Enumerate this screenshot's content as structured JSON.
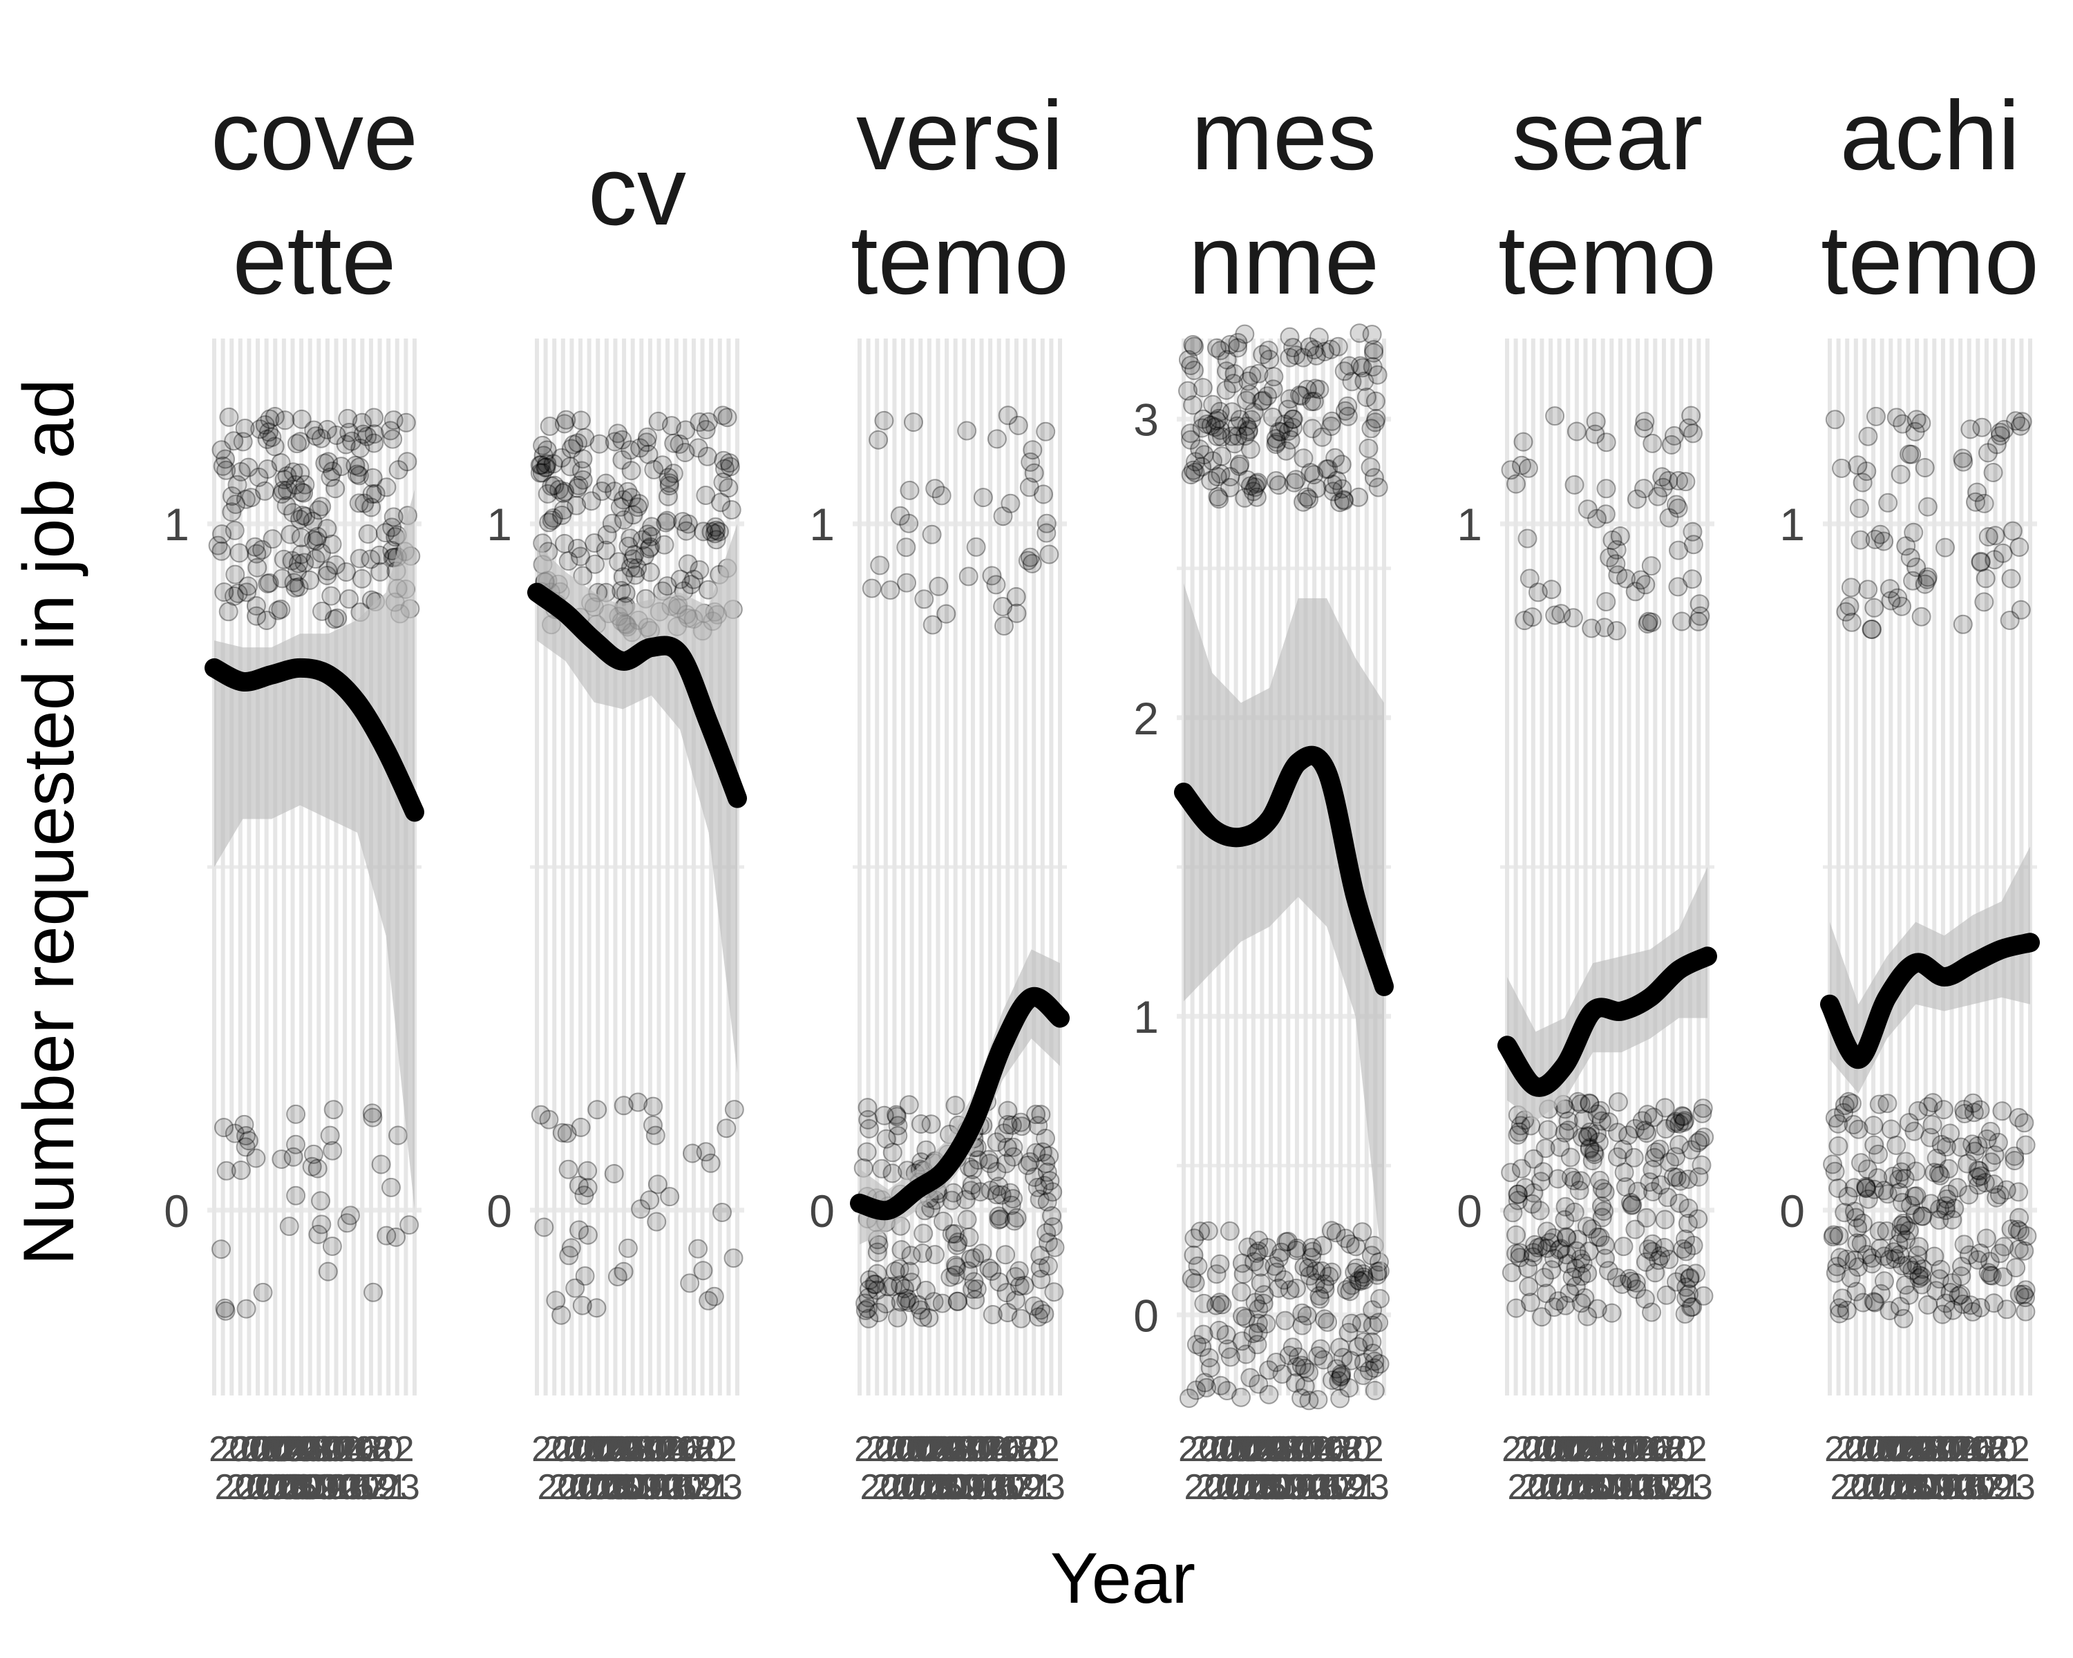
{
  "chart_data": {
    "type": "scatter",
    "xlabel": "Year",
    "ylabel": "Number requested in job ad",
    "x_categories": [
      "2000",
      "2001",
      "2002",
      "2003",
      "2004",
      "2005",
      "2006",
      "2007",
      "2008",
      "2009",
      "2010",
      "2011",
      "2012",
      "2013",
      "2014",
      "2015",
      "2016",
      "2017",
      "2018",
      "2019",
      "2020",
      "2021",
      "2022",
      "2023"
    ],
    "x_tick_rows": [
      "2000 2002 2004 2006 2008 2010 2012 2014 2016 2018 2020 2022",
      "2001 2003 2005 2007 2009 2011 2013 2015 2017 2019 2021 2023"
    ],
    "point_alpha": 0.15,
    "smoother_color": "#000000",
    "ribbon_color": "#bdbdbd",
    "grid": true,
    "panels": [
      {
        "strip_lines": [
          "cove",
          "ette"
        ],
        "ylim": [
          -0.27,
          1.27
        ],
        "y_ticks": [
          0,
          1
        ],
        "jitter_levels": [
          0,
          1
        ],
        "level_counts": [
          42,
          170
        ],
        "smooth": [
          0.79,
          0.77,
          0.78,
          0.79,
          0.78,
          0.74,
          0.67,
          0.58
        ],
        "lower": [
          0.5,
          0.57,
          0.57,
          0.59,
          0.57,
          0.55,
          0.4,
          0.0
        ],
        "upper": [
          0.83,
          0.82,
          0.82,
          0.84,
          0.84,
          0.86,
          0.9,
          1.05
        ]
      },
      {
        "strip_lines": [
          "cv"
        ],
        "ylim": [
          -0.27,
          1.27
        ],
        "y_ticks": [
          0,
          1
        ],
        "jitter_levels": [
          0,
          1
        ],
        "level_counts": [
          48,
          190
        ],
        "smooth": [
          0.9,
          0.87,
          0.83,
          0.8,
          0.82,
          0.81,
          0.71,
          0.6
        ],
        "lower": [
          0.83,
          0.8,
          0.74,
          0.73,
          0.75,
          0.7,
          0.55,
          0.2
        ],
        "upper": [
          0.97,
          0.93,
          0.9,
          0.88,
          0.89,
          0.9,
          0.88,
          1.0
        ]
      },
      {
        "strip_lines": [
          "versi",
          "temo"
        ],
        "ylim": [
          -0.27,
          1.27
        ],
        "y_ticks": [
          0,
          1
        ],
        "jitter_levels": [
          0,
          1
        ],
        "level_counts": [
          200,
          45
        ],
        "smooth": [
          0.01,
          0.0,
          0.03,
          0.06,
          0.13,
          0.24,
          0.31,
          0.28
        ],
        "lower": [
          -0.05,
          -0.03,
          0.0,
          0.03,
          0.09,
          0.19,
          0.25,
          0.21
        ],
        "upper": [
          0.06,
          0.03,
          0.06,
          0.1,
          0.17,
          0.29,
          0.38,
          0.36
        ]
      },
      {
        "strip_lines": [
          "mes",
          "nme"
        ],
        "ylim": [
          -0.27,
          3.27
        ],
        "y_ticks": [
          0,
          1,
          2,
          3
        ],
        "jitter_levels": [
          0,
          3
        ],
        "level_counts": [
          160,
          170
        ],
        "smooth": [
          1.75,
          1.63,
          1.6,
          1.66,
          1.85,
          1.82,
          1.4,
          1.1
        ],
        "lower": [
          1.05,
          1.15,
          1.25,
          1.3,
          1.4,
          1.3,
          1.0,
          0.1
        ],
        "upper": [
          2.45,
          2.15,
          2.05,
          2.1,
          2.4,
          2.4,
          2.2,
          2.05
        ]
      },
      {
        "strip_lines": [
          "sear",
          "temo"
        ],
        "ylim": [
          -0.27,
          1.27
        ],
        "y_ticks": [
          0,
          1
        ],
        "jitter_levels": [
          0,
          1
        ],
        "level_counts": [
          210,
          70
        ],
        "smooth": [
          0.24,
          0.18,
          0.21,
          0.29,
          0.29,
          0.31,
          0.35,
          0.37
        ],
        "lower": [
          0.16,
          0.13,
          0.16,
          0.23,
          0.23,
          0.25,
          0.28,
          0.28
        ],
        "upper": [
          0.34,
          0.26,
          0.28,
          0.36,
          0.37,
          0.38,
          0.41,
          0.5
        ]
      },
      {
        "strip_lines": [
          "achi",
          "temo"
        ],
        "ylim": [
          -0.27,
          1.27
        ],
        "y_ticks": [
          0,
          1
        ],
        "jitter_levels": [
          0,
          1
        ],
        "level_counts": [
          210,
          75
        ],
        "smooth": [
          0.3,
          0.22,
          0.31,
          0.36,
          0.34,
          0.36,
          0.38,
          0.39
        ],
        "lower": [
          0.22,
          0.17,
          0.25,
          0.3,
          0.29,
          0.3,
          0.31,
          0.3
        ],
        "upper": [
          0.42,
          0.3,
          0.37,
          0.42,
          0.4,
          0.43,
          0.45,
          0.53
        ]
      }
    ]
  }
}
